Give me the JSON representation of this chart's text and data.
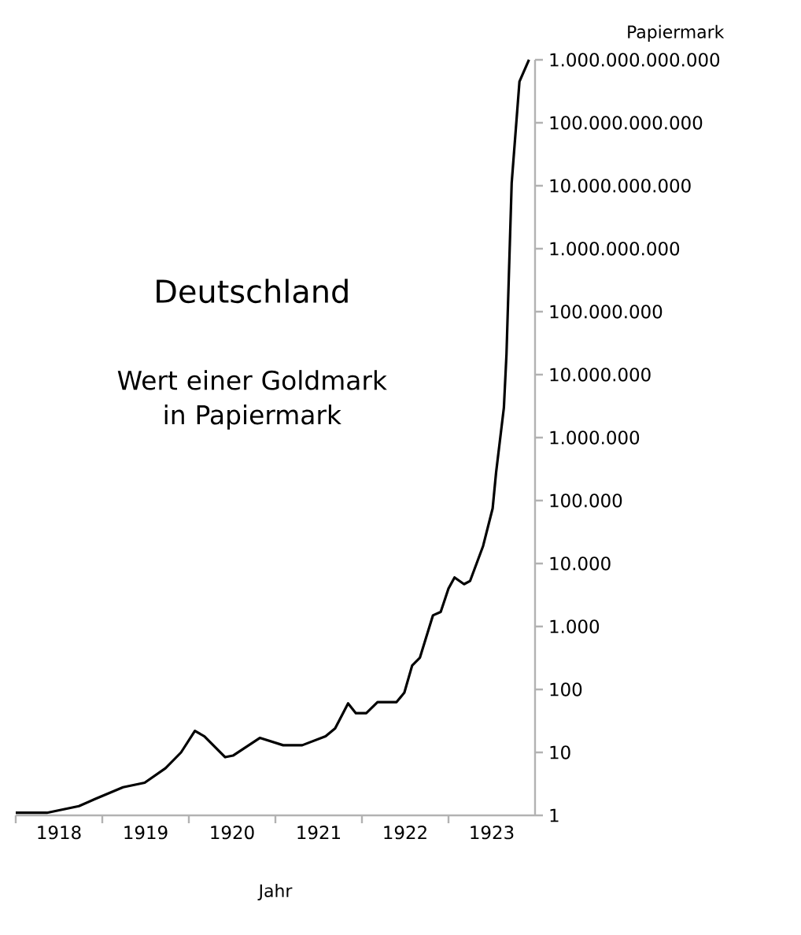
{
  "chart_data": {
    "type": "line",
    "title": "Deutschland",
    "subtitle": "Wert einer Goldmark in Papiermark",
    "xlabel": "Jahr",
    "ylabel": "Papiermark",
    "log": "y",
    "xlim": [
      1918,
      1924
    ],
    "ylim": [
      1,
      1000000000000
    ],
    "xticks": [
      {
        "value": 1918,
        "label": null
      },
      {
        "value": 1919,
        "label": null
      },
      {
        "value": 1920,
        "label": null
      },
      {
        "value": 1921,
        "label": null
      },
      {
        "value": 1922,
        "label": null
      },
      {
        "value": 1923,
        "label": null
      },
      {
        "value": 1918.5,
        "label": "1918"
      },
      {
        "value": 1919.5,
        "label": "1919"
      },
      {
        "value": 1920.5,
        "label": "1920"
      },
      {
        "value": 1921.5,
        "label": "1921"
      },
      {
        "value": 1922.5,
        "label": "1922"
      },
      {
        "value": 1923.5,
        "label": "1923"
      }
    ],
    "yticks": [
      {
        "value": 1,
        "label": "1"
      },
      {
        "value": 10,
        "label": "10"
      },
      {
        "value": 100,
        "label": "100"
      },
      {
        "value": 1000,
        "label": "1.000"
      },
      {
        "value": 10000,
        "label": "10.000"
      },
      {
        "value": 100000,
        "label": "100.000"
      },
      {
        "value": 1000000,
        "label": "1.000.000"
      },
      {
        "value": 10000000,
        "label": "10.000.000"
      },
      {
        "value": 100000000,
        "label": "100.000.000"
      },
      {
        "value": 1000000000,
        "label": "1.000.000.000"
      },
      {
        "value": 10000000000,
        "label": "10.000.000.000"
      },
      {
        "value": 100000000000,
        "label": "100.000.000.000"
      },
      {
        "value": 1000000000000,
        "label": "1.000.000.000.000"
      }
    ],
    "series": [
      {
        "color": "#000000",
        "x": [
          1918.0,
          1918.36,
          1918.73,
          1918.91,
          1919.24,
          1919.49,
          1919.73,
          1919.91,
          1920.07,
          1920.18,
          1920.42,
          1920.51,
          1920.82,
          1921.09,
          1921.31,
          1921.58,
          1921.69,
          1921.84,
          1921.93,
          1922.05,
          1922.18,
          1922.4,
          1922.49,
          1922.58,
          1922.67,
          1922.82,
          1922.91,
          1923.0,
          1923.07,
          1923.18,
          1923.25,
          1923.4,
          1923.51,
          1923.55,
          1923.64,
          1923.67,
          1923.73,
          1923.82,
          1923.93
        ],
        "values": [
          1.1,
          1.1,
          1.4,
          1.8,
          2.8,
          3.3,
          5.6,
          10,
          22,
          18,
          8.4,
          8.9,
          17,
          13,
          13,
          18,
          24,
          60,
          42,
          42,
          63,
          63,
          89,
          240,
          320,
          1500,
          1700,
          4000,
          6000,
          4700,
          5300,
          19000,
          75000,
          280000,
          3000000,
          21000000,
          11000000000,
          450000000000,
          1000000000000
        ]
      }
    ]
  }
}
